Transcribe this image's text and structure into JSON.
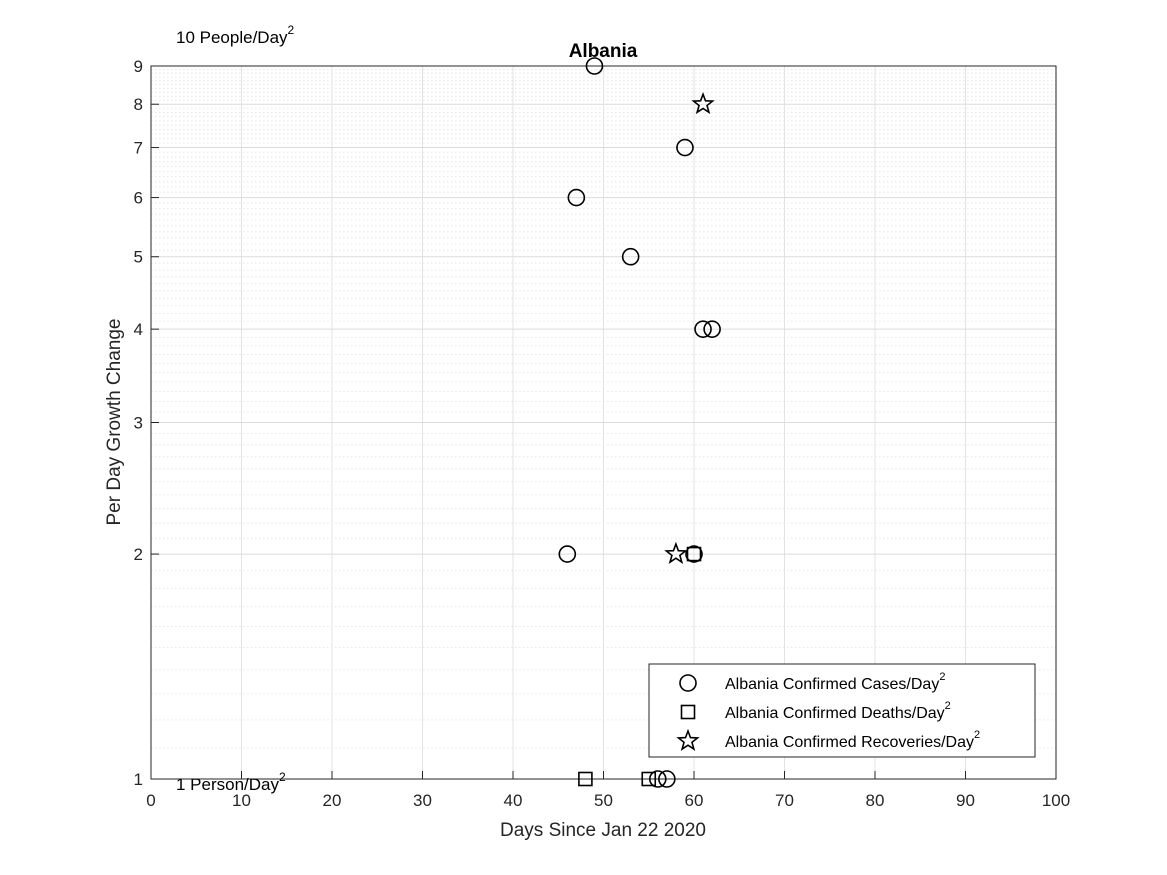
{
  "chart_data": {
    "type": "scatter",
    "title": "Albania",
    "xlabel": "Days Since Jan 22 2020",
    "ylabel": "Per Day Growth Change",
    "xlim": [
      0,
      100
    ],
    "ylim": [
      1,
      9
    ],
    "yscale": "log",
    "x_ticks": [
      "0",
      "10",
      "20",
      "30",
      "40",
      "50",
      "60",
      "70",
      "80",
      "90",
      "100"
    ],
    "y_ticks": [
      "1",
      "2",
      "3",
      "4",
      "5",
      "6",
      "7",
      "8",
      "9"
    ],
    "grid": true,
    "annotations": {
      "top_left_prefix": "10 People/Day",
      "top_left_sup": "2",
      "bottom_left_prefix": "1 Person/Day",
      "bottom_left_sup": "2"
    },
    "legend_position": "bottom-right",
    "series": [
      {
        "name": "Albania Confirmed Cases/Day",
        "name_sup": "2",
        "marker": "circle",
        "points": [
          [
            46,
            2
          ],
          [
            47,
            6
          ],
          [
            49,
            9
          ],
          [
            53,
            5
          ],
          [
            56,
            1
          ],
          [
            57,
            1
          ],
          [
            59,
            7
          ],
          [
            60,
            2
          ],
          [
            61,
            4
          ],
          [
            62,
            4
          ]
        ]
      },
      {
        "name": "Albania Confirmed Deaths/Day",
        "name_sup": "2",
        "marker": "square",
        "points": [
          [
            48,
            1
          ],
          [
            55,
            1
          ],
          [
            60,
            2
          ]
        ]
      },
      {
        "name": "Albania Confirmed Recoveries/Day",
        "name_sup": "2",
        "marker": "star",
        "points": [
          [
            58,
            2
          ],
          [
            61,
            8
          ]
        ]
      }
    ]
  }
}
